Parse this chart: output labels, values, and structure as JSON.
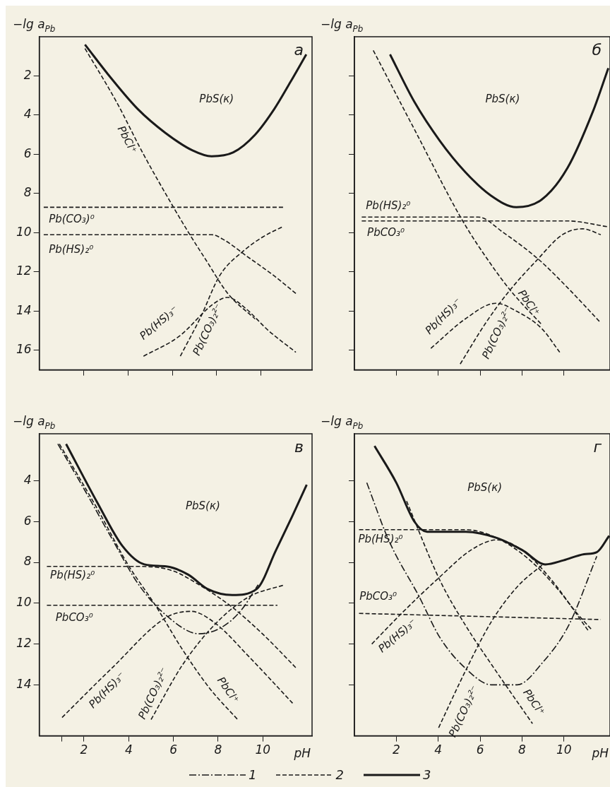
{
  "chart_data": [
    {
      "type": "line",
      "title": "а",
      "ylabel": "−lg a$_{Pb}$",
      "xlim": [
        0,
        12.3
      ],
      "ylim": [
        17,
        0
      ],
      "xticks": [
        2,
        4,
        6,
        8,
        10
      ],
      "yticks": [
        2,
        4,
        6,
        8,
        10,
        12,
        14,
        16
      ],
      "tick_labels": "y",
      "annotations": [
        "PbS(к)"
      ],
      "series": [
        {
          "color": "#1a1a1a",
          "line_style": "solid",
          "x": [
            2.06,
            3.23,
            4.45,
            5.68,
            6.91,
            7.77,
            8.75,
            9.73,
            10.59,
            11.33,
            12.04
          ],
          "values": [
            0.4,
            2.1,
            3.7,
            4.9,
            5.8,
            6.1,
            5.9,
            5.0,
            3.7,
            2.3,
            0.9
          ]
        },
        {
          "name": "PbCl⁺",
          "color": "#1a1a1a",
          "line_style": "dashed",
          "x": [
            2.06,
            3.47,
            4.7,
            6.05,
            6.79,
            7.52,
            8.5,
            9.73
          ],
          "values": [
            0.6,
            3.3,
            6.0,
            8.7,
            10.1,
            11.4,
            13.1,
            14.4
          ]
        },
        {
          "name": "Pb(CO₃)⁰",
          "color": "#1a1a1a",
          "line_style": "dashed",
          "x": [
            0.2,
            11.0
          ],
          "values": [
            8.7,
            8.7
          ]
        },
        {
          "name": "Pb(HS)₂⁰",
          "color": "#1a1a1a",
          "line_style": "dashed",
          "x": [
            0.2,
            7.77,
            8.38,
            9.36,
            10.59,
            11.57
          ],
          "values": [
            10.1,
            10.1,
            10.4,
            11.2,
            12.2,
            13.1
          ]
        },
        {
          "name": "Pb(HS)₃⁻",
          "color": "#1a1a1a",
          "line_style": "dashed",
          "x": [
            4.7,
            6.29,
            7.89,
            8.5,
            9.24,
            10.34,
            11.57
          ],
          "values": [
            16.3,
            15.3,
            13.6,
            13.3,
            13.8,
            15.0,
            16.1
          ]
        },
        {
          "name": "Pb(CO₃)₂²⁻",
          "color": "#1a1a1a",
          "line_style": "dashed",
          "x": [
            6.36,
            7.28,
            8.13,
            9.24,
            10.1,
            10.96
          ],
          "values": [
            16.3,
            14.3,
            12.2,
            10.9,
            10.2,
            9.7
          ]
        }
      ]
    },
    {
      "type": "line",
      "title": "б",
      "ylabel": "−lg a$_{Pb}$",
      "xlim": [
        0,
        12.2
      ],
      "ylim": [
        17,
        0
      ],
      "xticks": [
        2,
        4,
        6,
        8,
        10
      ],
      "yticks": [
        2,
        4,
        6,
        8,
        10,
        12,
        14,
        16
      ],
      "tick_labels": false,
      "annotations": [
        "PbS(к)"
      ],
      "series": [
        {
          "color": "#1a1a1a",
          "line_style": "solid",
          "x": [
            1.7,
            2.85,
            4.07,
            5.29,
            6.51,
            7.73,
            8.95,
            10.17,
            11.39,
            12.12
          ],
          "values": [
            0.9,
            3.3,
            5.3,
            6.9,
            8.1,
            8.7,
            8.3,
            6.7,
            3.8,
            1.6
          ]
        },
        {
          "name": "PbCl⁺",
          "color": "#1a1a1a",
          "line_style": "dashed",
          "x": [
            0.9,
            2.85,
            5.17,
            6.51,
            7.49,
            8.95
          ],
          "values": [
            0.7,
            4.7,
            9.4,
            11.6,
            13.0,
            14.7
          ]
        },
        {
          "name": "Pb(HS)₂⁰",
          "color": "#1a1a1a",
          "line_style": "dashed",
          "x": [
            0.35,
            5.9,
            7.12,
            8.83,
            10.17,
            11.76
          ],
          "values": [
            9.2,
            9.2,
            10.0,
            11.4,
            12.8,
            14.6
          ]
        },
        {
          "name": "PbCO₃⁰",
          "color": "#1a1a1a",
          "line_style": "dashed",
          "x": [
            0.35,
            8.95,
            10.17,
            12.12
          ],
          "values": [
            9.4,
            9.4,
            9.4,
            9.7
          ]
        },
        {
          "name": "Pb(HS)₃⁻",
          "color": "#1a1a1a",
          "line_style": "dashed",
          "x": [
            3.65,
            5.29,
            6.76,
            7.73,
            8.95,
            9.8
          ],
          "values": [
            15.9,
            14.4,
            13.6,
            14.0,
            14.9,
            16.1
          ]
        },
        {
          "name": "Pb(CO₃)₂²⁻",
          "color": "#1a1a1a",
          "line_style": "dashed",
          "x": [
            5.05,
            6.27,
            7.37,
            8.71,
            9.93,
            10.9,
            11.76
          ],
          "values": [
            16.7,
            14.6,
            13.0,
            11.4,
            10.1,
            9.8,
            10.1
          ]
        }
      ]
    },
    {
      "type": "line",
      "title": "в",
      "ylabel": "−lg a$_{Pb}$",
      "xlabel": "pH",
      "xlim": [
        0,
        12.2
      ],
      "ylim": [
        16.5,
        1.7
      ],
      "xticks": [
        {
          "value": 1,
          "label": null
        },
        2,
        4,
        6,
        8,
        10
      ],
      "yticks": [
        4,
        6,
        8,
        10,
        12,
        14
      ],
      "annotations": [
        "PbS(к)"
      ],
      "series": [
        {
          "color": "#1a1a1a",
          "line_style": "solid",
          "x": [
            1.2,
            2.61,
            3.72,
            4.7,
            5.68,
            6.66,
            7.52,
            8.63,
            9.73,
            10.59,
            11.33,
            11.96
          ],
          "values": [
            2.2,
            5.1,
            7.2,
            8.1,
            8.2,
            8.6,
            9.3,
            9.6,
            9.3,
            7.4,
            5.7,
            4.2
          ]
        },
        {
          "color": "#1a1a1a",
          "line_style": "dashdot",
          "x": [
            0.83,
            2.0,
            3.23,
            4.45,
            5.68,
            7.15,
            8.13,
            8.99,
            9.79
          ],
          "values": [
            2.2,
            4.4,
            6.8,
            9.1,
            10.6,
            11.5,
            11.2,
            10.4,
            9.1
          ]
        },
        {
          "name": "PbCl⁺",
          "color": "#1a1a1a",
          "line_style": "dashed",
          "x": [
            0.9,
            2.61,
            3.96,
            5.19,
            6.42,
            7.64,
            8.87
          ],
          "values": [
            2.2,
            5.4,
            8.1,
            10.1,
            12.3,
            14.2,
            15.7
          ]
        },
        {
          "name": "Pb(HS)₂⁰",
          "color": "#1a1a1a",
          "line_style": "dashed",
          "x": [
            0.34,
            4.45,
            5.93,
            7.15,
            8.63,
            9.98,
            11.51
          ],
          "values": [
            8.2,
            8.2,
            8.4,
            9.1,
            10.2,
            11.5,
            13.2
          ]
        },
        {
          "name": "PbCO₃⁰",
          "color": "#1a1a1a",
          "line_style": "dashed",
          "x": [
            0.34,
            10.65
          ],
          "values": [
            10.1,
            10.1
          ]
        },
        {
          "name": "Pb(HS)₃⁻",
          "color": "#1a1a1a",
          "line_style": "dashed",
          "x": [
            1.02,
            3.23,
            5.68,
            6.79,
            7.89,
            9.36,
            11.33
          ],
          "values": [
            15.6,
            13.2,
            10.7,
            10.4,
            11.0,
            12.6,
            14.9
          ]
        },
        {
          "name": "Pb(CO₃)₂²⁻",
          "color": "#1a1a1a",
          "line_style": "dashed",
          "x": [
            5.0,
            6.42,
            7.89,
            9.36,
            10.96
          ],
          "values": [
            15.7,
            13.0,
            11.0,
            9.7,
            9.1
          ]
        }
      ]
    },
    {
      "type": "line",
      "title": "г",
      "ylabel": "−lg a$_{Pb}$",
      "xlabel": "pH",
      "xlim": [
        0,
        12.2
      ],
      "ylim": [
        16.5,
        1.7
      ],
      "xticks": [
        2,
        4,
        6,
        8,
        10
      ],
      "yticks": [
        4,
        6,
        8,
        10,
        12,
        14
      ],
      "tick_labels": "x",
      "annotations": [
        "PbS(к)"
      ],
      "series": [
        {
          "color": "#1a1a1a",
          "line_style": "solid",
          "x": [
            0.96,
            2.0,
            2.86,
            3.47,
            5.31,
            6.79,
            8.01,
            9.12,
            9.98,
            10.96,
            11.57,
            12.16
          ],
          "values": [
            2.3,
            4.1,
            6.0,
            6.5,
            6.5,
            6.8,
            7.4,
            8.1,
            7.9,
            7.6,
            7.5,
            6.7
          ]
        },
        {
          "color": "#1a1a1a",
          "line_style": "dashdot",
          "x": [
            0.59,
            1.63,
            3.1,
            4.09,
            5.31,
            6.54,
            7.77,
            8.99,
            10.22,
            11.57
          ],
          "values": [
            4.1,
            6.9,
            9.7,
            11.7,
            13.2,
            14.0,
            14.0,
            12.9,
            11.1,
            7.7
          ]
        },
        {
          "name": "Pb(HS)₂⁰",
          "color": "#1a1a1a",
          "line_style": "dashed",
          "x": [
            0.22,
            5.31,
            6.79,
            8.38,
            9.61,
            10.71,
            11.33
          ],
          "values": [
            6.4,
            6.4,
            6.8,
            7.9,
            9.2,
            10.6,
            11.3
          ]
        },
        {
          "name": "Pb(HS)₃⁻",
          "color": "#1a1a1a",
          "line_style": "dashed",
          "x": [
            0.83,
            2.25,
            4.09,
            5.56,
            6.79,
            8.01,
            9.36,
            11.2
          ],
          "values": [
            12.0,
            10.5,
            8.7,
            7.4,
            6.9,
            7.4,
            8.8,
            11.4
          ]
        },
        {
          "name": "PbCO₃⁰",
          "color": "#1a1a1a",
          "line_style": "dashed",
          "x": [
            0.22,
            11.75
          ],
          "values": [
            10.5,
            10.8
          ]
        },
        {
          "name": "PbCl⁺",
          "color": "#1a1a1a",
          "line_style": "dashed",
          "x": [
            2.49,
            4.09,
            5.31,
            6.54,
            8.5
          ],
          "values": [
            5.0,
            8.9,
            11.1,
            13.0,
            15.9
          ]
        },
        {
          "name": "Pb(CO₃)₂²⁻",
          "color": "#1a1a1a",
          "line_style": "dashed",
          "x": [
            4.02,
            5.31,
            6.54,
            7.77,
            8.99
          ],
          "values": [
            16.1,
            13.3,
            10.9,
            9.2,
            8.1
          ]
        }
      ]
    },
    {
      "type": "other",
      "annotations": [
        "1",
        "2",
        "3"
      ]
    }
  ]
}
